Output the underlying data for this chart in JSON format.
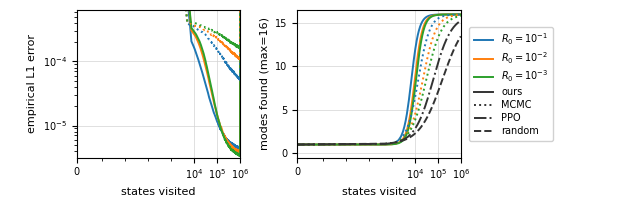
{
  "fig_width": 6.4,
  "fig_height": 2.02,
  "dpi": 100,
  "colors": {
    "blue": "#1f77b4",
    "orange": "#ff7f0e",
    "green": "#2ca02c",
    "black": "#333333"
  },
  "left_ylabel": "empirical L1 error",
  "left_xlabel": "states visited",
  "right_ylabel": "modes found (max=16)",
  "right_xlabel": "states visited"
}
